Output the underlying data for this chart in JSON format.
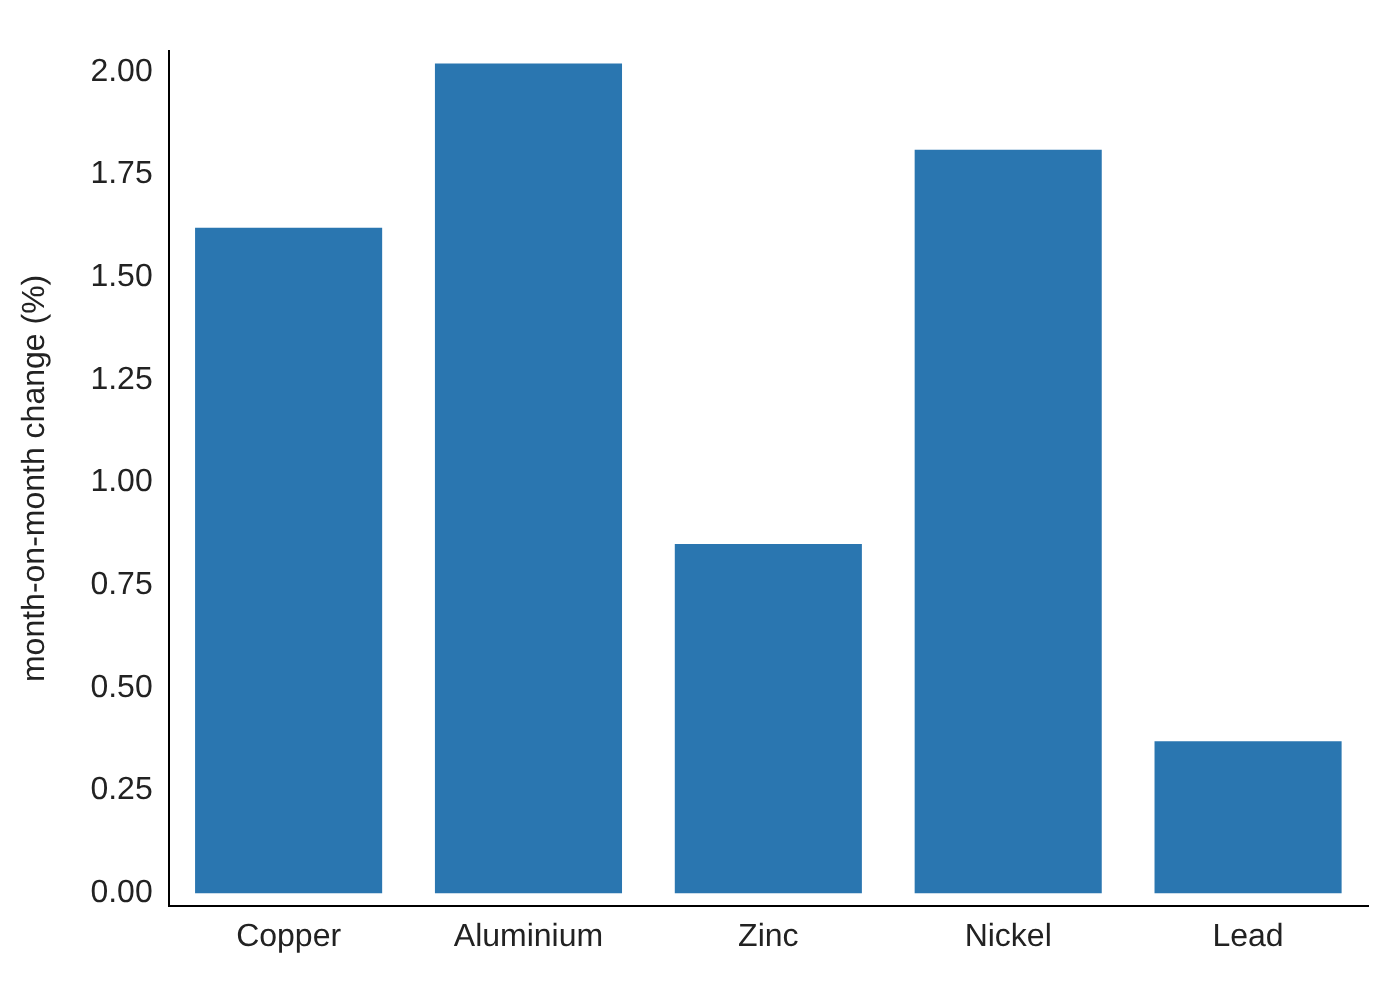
{
  "chart_data": {
    "type": "bar",
    "ylabel": "month-on-month change (%)",
    "categories": [
      "Copper",
      "Aluminium",
      "Zinc",
      "Nickel",
      "Lead"
    ],
    "values": [
      1.62,
      2.02,
      0.85,
      1.81,
      0.37
    ],
    "color": "#2a76b0",
    "ylim": [
      -0.03,
      2.05
    ],
    "yticks": [
      {
        "value": 0,
        "label": "0.00"
      },
      {
        "value": 0.25,
        "label": "0.25"
      },
      {
        "value": 0.5,
        "label": "0.50"
      },
      {
        "value": 0.75,
        "label": "0.75"
      },
      {
        "value": 1,
        "label": "1.00"
      },
      {
        "value": 1.25,
        "label": "1.25"
      },
      {
        "value": 1.5,
        "label": "1.50"
      },
      {
        "value": 1.75,
        "label": "1.75"
      },
      {
        "value": 2,
        "label": "2.00"
      }
    ],
    "grid": false,
    "legend": false
  }
}
